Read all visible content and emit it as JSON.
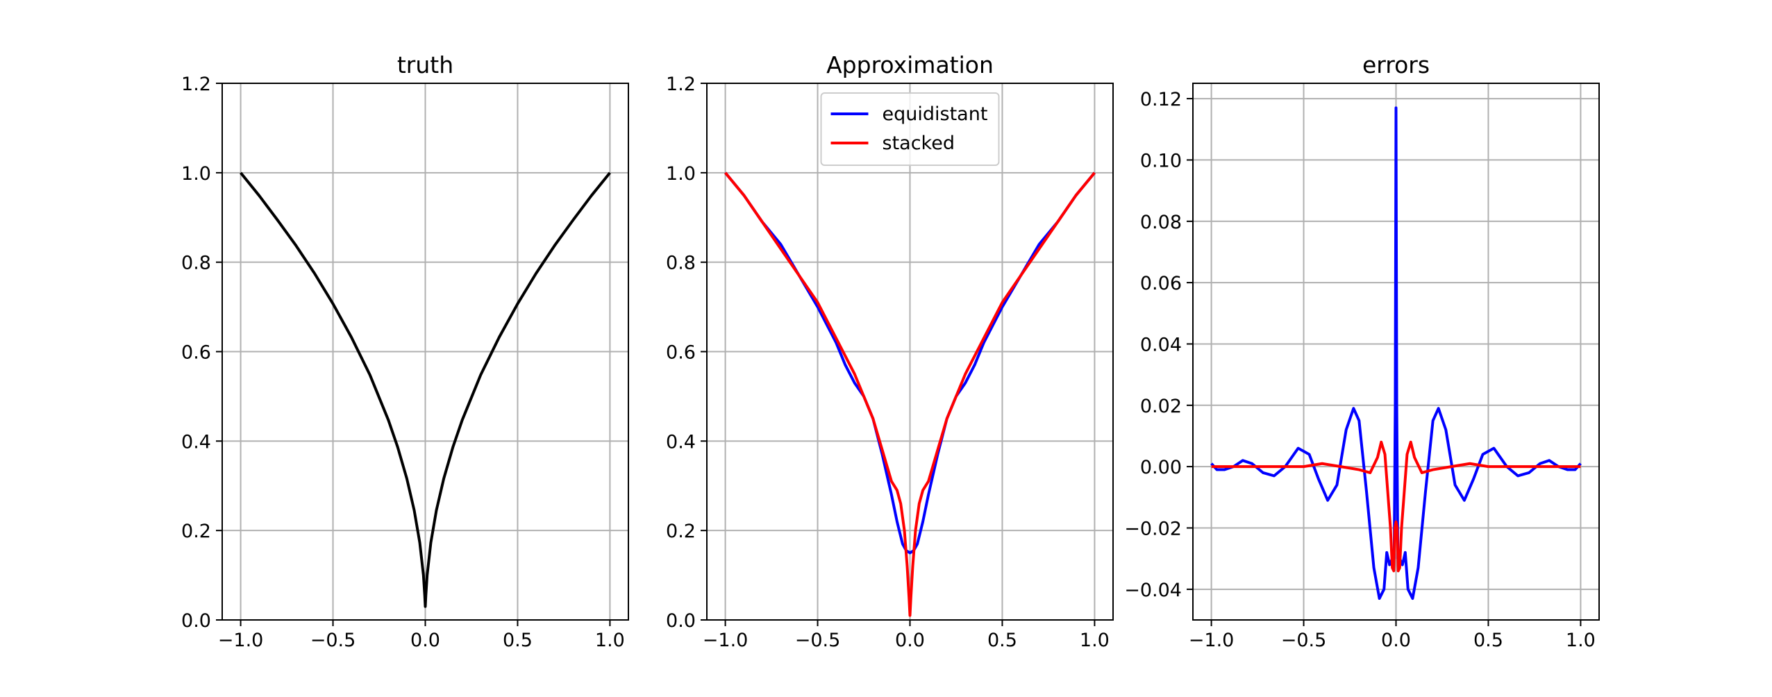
{
  "colors": {
    "truth": "#000000",
    "equidistant": "#0000ff",
    "stacked": "#ff0000",
    "grid": "#b0b0b0",
    "axes": "#000000"
  },
  "chart_data": [
    {
      "type": "line",
      "title": "truth",
      "xlabel": "",
      "ylabel": "",
      "xlim": [
        -1.1,
        1.1
      ],
      "ylim": [
        0.0,
        1.2
      ],
      "grid": true,
      "xticks": [
        -1.0,
        -0.5,
        0.0,
        0.5,
        1.0
      ],
      "xtick_labels": [
        "−1.0",
        "−0.5",
        "0.0",
        "0.5",
        "1.0"
      ],
      "yticks": [
        0.0,
        0.2,
        0.4,
        0.6,
        0.8,
        1.0,
        1.2
      ],
      "ytick_labels": [
        "0.0",
        "0.2",
        "0.4",
        "0.6",
        "0.8",
        "1.0",
        "1.2"
      ],
      "series": [
        {
          "color": "truth",
          "x": [
            -1.0,
            -0.9,
            -0.8,
            -0.7,
            -0.6,
            -0.5,
            -0.4,
            -0.3,
            -0.2,
            -0.15,
            -0.1,
            -0.06,
            -0.03,
            -0.01,
            -0.003,
            0.0,
            0.003,
            0.01,
            0.03,
            0.06,
            0.1,
            0.15,
            0.2,
            0.3,
            0.4,
            0.5,
            0.6,
            0.7,
            0.8,
            0.9,
            1.0
          ],
          "y": [
            1.0,
            0.949,
            0.894,
            0.837,
            0.775,
            0.707,
            0.632,
            0.548,
            0.447,
            0.387,
            0.316,
            0.245,
            0.173,
            0.1,
            0.055,
            0.03,
            0.055,
            0.1,
            0.173,
            0.245,
            0.316,
            0.387,
            0.447,
            0.548,
            0.632,
            0.707,
            0.775,
            0.837,
            0.894,
            0.949,
            1.0
          ]
        }
      ]
    },
    {
      "type": "line",
      "title": "Approximation",
      "xlabel": "",
      "ylabel": "",
      "xlim": [
        -1.1,
        1.1
      ],
      "ylim": [
        0.0,
        1.2
      ],
      "grid": true,
      "legend_position": "top-center",
      "xticks": [
        -1.0,
        -0.5,
        0.0,
        0.5,
        1.0
      ],
      "xtick_labels": [
        "−1.0",
        "−0.5",
        "0.0",
        "0.5",
        "1.0"
      ],
      "yticks": [
        0.0,
        0.2,
        0.4,
        0.6,
        0.8,
        1.0,
        1.2
      ],
      "ytick_labels": [
        "0.0",
        "0.2",
        "0.4",
        "0.6",
        "0.8",
        "1.0",
        "1.2"
      ],
      "series": [
        {
          "name": "equidistant",
          "color": "equidistant",
          "x": [
            -1.0,
            -0.9,
            -0.8,
            -0.7,
            -0.6,
            -0.5,
            -0.4,
            -0.35,
            -0.3,
            -0.25,
            -0.2,
            -0.15,
            -0.1,
            -0.07,
            -0.04,
            -0.02,
            0.0,
            0.02,
            0.04,
            0.07,
            0.1,
            0.15,
            0.2,
            0.25,
            0.3,
            0.35,
            0.4,
            0.5,
            0.6,
            0.7,
            0.8,
            0.9,
            1.0
          ],
          "y": [
            1.0,
            0.95,
            0.89,
            0.84,
            0.77,
            0.7,
            0.62,
            0.57,
            0.53,
            0.5,
            0.45,
            0.37,
            0.28,
            0.22,
            0.17,
            0.155,
            0.15,
            0.155,
            0.17,
            0.22,
            0.28,
            0.37,
            0.45,
            0.5,
            0.53,
            0.57,
            0.62,
            0.7,
            0.77,
            0.84,
            0.89,
            0.95,
            1.0
          ]
        },
        {
          "name": "stacked",
          "color": "stacked",
          "x": [
            -1.0,
            -0.9,
            -0.8,
            -0.7,
            -0.6,
            -0.5,
            -0.4,
            -0.3,
            -0.2,
            -0.15,
            -0.1,
            -0.07,
            -0.05,
            -0.03,
            -0.015,
            -0.005,
            0.0,
            0.005,
            0.015,
            0.03,
            0.05,
            0.07,
            0.1,
            0.15,
            0.2,
            0.3,
            0.4,
            0.5,
            0.6,
            0.7,
            0.8,
            0.9,
            1.0
          ],
          "y": [
            1.0,
            0.95,
            0.89,
            0.83,
            0.77,
            0.71,
            0.63,
            0.55,
            0.45,
            0.38,
            0.31,
            0.29,
            0.26,
            0.2,
            0.12,
            0.05,
            0.01,
            0.05,
            0.12,
            0.2,
            0.26,
            0.29,
            0.31,
            0.38,
            0.45,
            0.55,
            0.63,
            0.71,
            0.77,
            0.83,
            0.89,
            0.95,
            1.0
          ]
        }
      ]
    },
    {
      "type": "line",
      "title": "errors",
      "xlabel": "",
      "ylabel": "",
      "xlim": [
        -1.1,
        1.1
      ],
      "ylim": [
        -0.05,
        0.125
      ],
      "grid": true,
      "xticks": [
        -1.0,
        -0.5,
        0.0,
        0.5,
        1.0
      ],
      "xtick_labels": [
        "−1.0",
        "−0.5",
        "0.0",
        "0.5",
        "1.0"
      ],
      "yticks": [
        -0.04,
        -0.02,
        0.0,
        0.02,
        0.04,
        0.06,
        0.08,
        0.1,
        0.12
      ],
      "ytick_labels": [
        "−0.04",
        "−0.02",
        "0.00",
        "0.02",
        "0.04",
        "0.06",
        "0.08",
        "0.10",
        "0.12"
      ],
      "series": [
        {
          "name": "equidistant",
          "color": "equidistant",
          "x": [
            -1.0,
            -0.97,
            -0.93,
            -0.88,
            -0.83,
            -0.78,
            -0.72,
            -0.66,
            -0.6,
            -0.53,
            -0.47,
            -0.42,
            -0.37,
            -0.32,
            -0.27,
            -0.23,
            -0.2,
            -0.16,
            -0.12,
            -0.09,
            -0.065,
            -0.05,
            -0.035,
            -0.02,
            -0.01,
            -0.004,
            0.0,
            0.004,
            0.01,
            0.02,
            0.035,
            0.05,
            0.065,
            0.09,
            0.12,
            0.16,
            0.2,
            0.23,
            0.27,
            0.32,
            0.37,
            0.42,
            0.47,
            0.53,
            0.6,
            0.66,
            0.72,
            0.78,
            0.83,
            0.88,
            0.93,
            0.97,
            1.0
          ],
          "y": [
            0.001,
            -0.001,
            -0.001,
            0.0,
            0.002,
            0.001,
            -0.002,
            -0.003,
            0.0,
            0.006,
            0.004,
            -0.004,
            -0.011,
            -0.006,
            0.012,
            0.019,
            0.015,
            -0.008,
            -0.033,
            -0.043,
            -0.04,
            -0.028,
            -0.032,
            -0.03,
            -0.03,
            0.02,
            0.117,
            0.02,
            -0.03,
            -0.03,
            -0.032,
            -0.028,
            -0.04,
            -0.043,
            -0.033,
            -0.008,
            0.015,
            0.019,
            0.012,
            -0.006,
            -0.011,
            -0.004,
            0.004,
            0.006,
            0.0,
            -0.003,
            -0.002,
            0.001,
            0.002,
            0.0,
            -0.001,
            -0.001,
            0.001
          ]
        },
        {
          "name": "stacked",
          "color": "stacked",
          "x": [
            -1.0,
            -0.9,
            -0.8,
            -0.7,
            -0.6,
            -0.5,
            -0.4,
            -0.3,
            -0.2,
            -0.14,
            -0.1,
            -0.08,
            -0.06,
            -0.045,
            -0.03,
            -0.02,
            -0.012,
            -0.006,
            0.0,
            0.006,
            0.012,
            0.02,
            0.03,
            0.045,
            0.06,
            0.08,
            0.1,
            0.14,
            0.2,
            0.3,
            0.4,
            0.5,
            0.6,
            0.7,
            0.8,
            0.9,
            1.0
          ],
          "y": [
            0.0,
            0.0,
            0.0,
            0.0,
            0.0,
            0.0,
            0.001,
            0.0,
            -0.001,
            -0.002,
            0.003,
            0.008,
            0.004,
            -0.008,
            -0.02,
            -0.033,
            -0.034,
            -0.02,
            -0.018,
            -0.02,
            -0.034,
            -0.033,
            -0.02,
            -0.008,
            0.004,
            0.008,
            0.003,
            -0.002,
            -0.001,
            0.0,
            0.001,
            0.0,
            0.0,
            0.0,
            0.0,
            0.0,
            0.0
          ]
        }
      ]
    }
  ]
}
